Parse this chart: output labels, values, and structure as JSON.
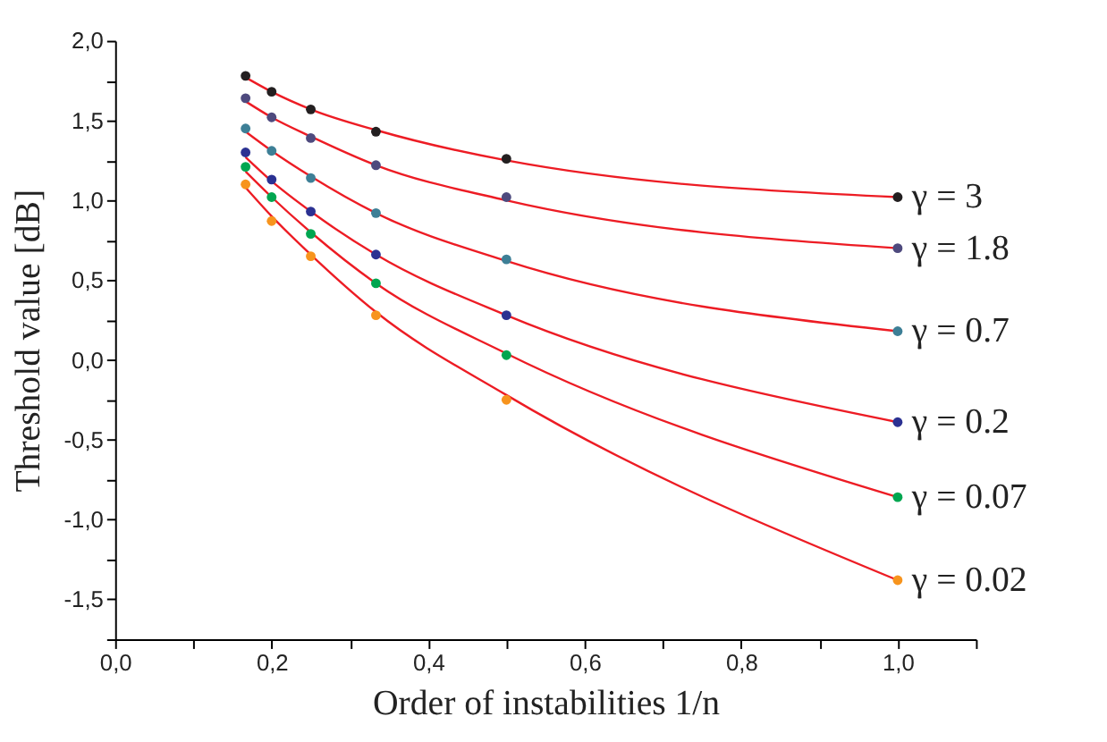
{
  "chart_data": {
    "type": "scatter",
    "xlabel": "Order of instabilities 1/n",
    "ylabel": "Threshold value [dB]",
    "xlim": [
      0,
      1.1
    ],
    "ylim": [
      -1.75,
      2.0
    ],
    "xticks": [
      {
        "value": 0,
        "label": "0,0"
      },
      {
        "value": 0.1,
        "label": null
      },
      {
        "value": 0.2,
        "label": "0,2"
      },
      {
        "value": 0.3,
        "label": null
      },
      {
        "value": 0.4,
        "label": "0,4"
      },
      {
        "value": 0.5,
        "label": null
      },
      {
        "value": 0.6,
        "label": "0,6"
      },
      {
        "value": 0.7,
        "label": null
      },
      {
        "value": 0.8,
        "label": "0,8"
      },
      {
        "value": 0.9,
        "label": null
      },
      {
        "value": 1.0,
        "label": "1,0"
      },
      {
        "value": 1.1,
        "label": null
      }
    ],
    "yticks": [
      {
        "value": -1.75,
        "label": null
      },
      {
        "value": -1.5,
        "label": "-1,5"
      },
      {
        "value": -1.25,
        "label": null
      },
      {
        "value": -1.0,
        "label": "-1,0"
      },
      {
        "value": -0.75,
        "label": null
      },
      {
        "value": -0.5,
        "label": "-0,5"
      },
      {
        "value": -0.25,
        "label": null
      },
      {
        "value": 0,
        "label": "0,0"
      },
      {
        "value": 0.25,
        "label": null
      },
      {
        "value": 0.5,
        "label": "0,5"
      },
      {
        "value": 0.75,
        "label": null
      },
      {
        "value": 1.0,
        "label": "1,0"
      },
      {
        "value": 1.25,
        "label": null
      },
      {
        "value": 1.5,
        "label": "1,5"
      },
      {
        "value": 1.75,
        "label": null
      },
      {
        "value": 2.0,
        "label": "2,0"
      }
    ],
    "x": [
      0.1667,
      0.2,
      0.25,
      0.3333,
      0.5,
      1.0
    ],
    "marker": "circle",
    "grid": false,
    "series": [
      {
        "name": "γ = 3",
        "color": "#231f20",
        "values": [
          1.78,
          1.68,
          1.57,
          1.43,
          1.26,
          1.02
        ]
      },
      {
        "name": "γ = 1.8",
        "color": "#4e4a7e",
        "values": [
          1.64,
          1.52,
          1.39,
          1.22,
          1.02,
          0.7
        ]
      },
      {
        "name": "γ = 0.7",
        "color": "#3d7f96",
        "values": [
          1.45,
          1.31,
          1.14,
          0.92,
          0.63,
          0.18
        ]
      },
      {
        "name": "γ = 0.2",
        "color": "#2b3192",
        "values": [
          1.3,
          1.13,
          0.93,
          0.66,
          0.28,
          -0.39
        ]
      },
      {
        "name": "γ = 0.07",
        "color": "#00a650",
        "values": [
          1.21,
          1.02,
          0.79,
          0.48,
          0.03,
          -0.86
        ]
      },
      {
        "name": "γ = 0.02",
        "color": "#f7941d",
        "values": [
          1.1,
          0.87,
          0.65,
          0.28,
          -0.25,
          -1.38
        ]
      },
      {
        "type": "line",
        "color": "#ed1c24",
        "marker": "none",
        "line_style": "solid",
        "x": [
          0.1667,
          0.2,
          0.25,
          0.3333,
          0.5,
          1.0
        ],
        "values": [
          1.77,
          1.68,
          1.57,
          1.44,
          1.25,
          1.02
        ]
      },
      {
        "type": "line",
        "color": "#ed1c24",
        "marker": "none",
        "line_style": "solid",
        "x": [
          0.1667,
          0.2,
          0.25,
          0.3333,
          0.5,
          1.0
        ],
        "values": [
          1.62,
          1.52,
          1.4,
          1.22,
          1.0,
          0.7
        ]
      },
      {
        "type": "line",
        "color": "#ed1c24",
        "marker": "none",
        "line_style": "solid",
        "x": [
          0.1667,
          0.2,
          0.25,
          0.3333,
          0.5,
          1.0
        ],
        "values": [
          1.43,
          1.31,
          1.15,
          0.92,
          0.62,
          0.18
        ]
      },
      {
        "type": "line",
        "color": "#ed1c24",
        "marker": "none",
        "line_style": "solid",
        "x": [
          0.1667,
          0.2,
          0.25,
          0.3333,
          0.5,
          1.0
        ],
        "values": [
          1.27,
          1.12,
          0.93,
          0.66,
          0.28,
          -0.39
        ]
      },
      {
        "type": "line",
        "color": "#ed1c24",
        "marker": "none",
        "line_style": "solid",
        "x": [
          0.1667,
          0.2,
          0.25,
          0.3333,
          0.5,
          1.0
        ],
        "values": [
          1.18,
          1.02,
          0.8,
          0.48,
          0.04,
          -0.86
        ]
      },
      {
        "type": "line",
        "color": "#ed1c24",
        "marker": "none",
        "line_style": "solid",
        "x": [
          0.1667,
          0.2,
          0.25,
          0.3333,
          0.5,
          1.0
        ],
        "values": [
          1.08,
          0.9,
          0.66,
          0.3,
          -0.22,
          -1.38
        ]
      }
    ]
  }
}
